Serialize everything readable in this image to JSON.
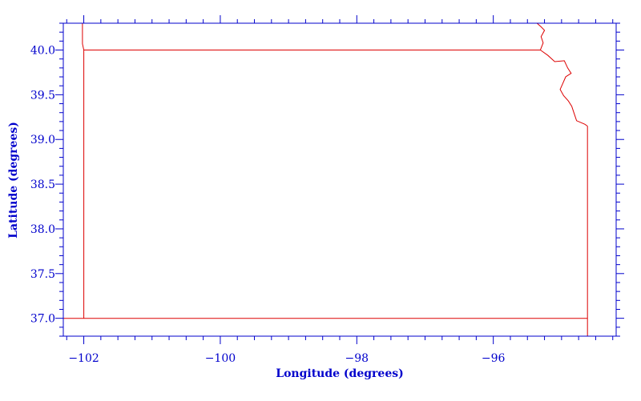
{
  "chart_data": {
    "type": "map",
    "xlabel": "Longitude (degrees)",
    "ylabel": "Latitude (degrees)",
    "xlim": [
      -102.3,
      -94.2
    ],
    "ylim": [
      36.8,
      40.3
    ],
    "x_ticks": [
      -102,
      -100,
      -98,
      -96
    ],
    "y_ticks": [
      37.0,
      37.5,
      38.0,
      38.5,
      39.0,
      39.5,
      40.0
    ],
    "x_minor_step": 0.25,
    "y_minor_step": 0.1,
    "frame_color": "#0000cc",
    "boundary_color": "#dd0000",
    "boundaries": [
      {
        "points": [
          [
            -102.02,
            40.3
          ],
          [
            -102.02,
            40.07
          ],
          [
            -102.0,
            40.0
          ],
          [
            -102.0,
            37.0
          ]
        ]
      },
      {
        "points": [
          [
            -102.0,
            40.0
          ],
          [
            -95.31,
            40.0
          ]
        ]
      },
      {
        "points": [
          [
            -102.3,
            37.0
          ],
          [
            -94.62,
            37.0
          ]
        ]
      },
      {
        "points": [
          [
            -94.62,
            36.8
          ],
          [
            -94.62,
            39.15
          ]
        ]
      },
      {
        "points": [
          [
            -95.36,
            40.3
          ],
          [
            -95.3,
            40.26
          ],
          [
            -95.25,
            40.22
          ],
          [
            -95.3,
            40.15
          ],
          [
            -95.27,
            40.08
          ],
          [
            -95.31,
            40.0
          ],
          [
            -95.2,
            39.94
          ],
          [
            -95.1,
            39.87
          ],
          [
            -94.96,
            39.88
          ],
          [
            -94.91,
            39.8
          ],
          [
            -94.86,
            39.74
          ],
          [
            -94.94,
            39.7
          ],
          [
            -94.98,
            39.63
          ],
          [
            -95.02,
            39.56
          ],
          [
            -94.97,
            39.49
          ],
          [
            -94.9,
            39.43
          ],
          [
            -94.85,
            39.37
          ],
          [
            -94.82,
            39.3
          ],
          [
            -94.78,
            39.21
          ],
          [
            -94.66,
            39.17
          ],
          [
            -94.62,
            39.15
          ]
        ]
      }
    ]
  }
}
